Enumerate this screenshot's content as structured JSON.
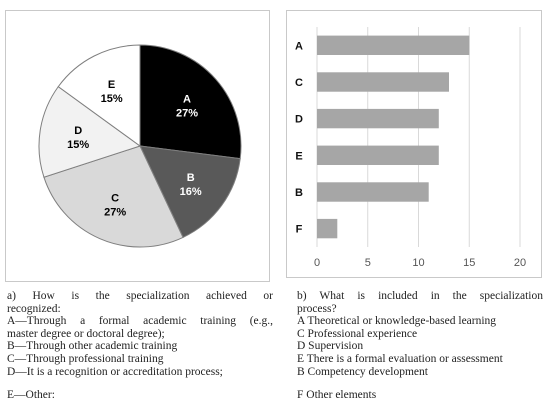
{
  "chart_data": [
    {
      "type": "pie",
      "slices": [
        {
          "label": "A",
          "value": 27,
          "pct_label": "27%",
          "color": "#000000",
          "text_color": "#ffffff"
        },
        {
          "label": "B",
          "value": 16,
          "pct_label": "16%",
          "color": "#595959",
          "text_color": "#ffffff"
        },
        {
          "label": "C",
          "value": 27,
          "pct_label": "27%",
          "color": "#d9d9d9",
          "text_color": "#000000"
        },
        {
          "label": "D",
          "value": 15,
          "pct_label": "15%",
          "color": "#f2f2f2",
          "text_color": "#000000"
        },
        {
          "label": "E",
          "value": 15,
          "pct_label": "15%",
          "color": "#ffffff",
          "text_color": "#000000"
        }
      ]
    },
    {
      "type": "bar",
      "orientation": "horizontal",
      "categories": [
        "A",
        "C",
        "D",
        "E",
        "B",
        "F"
      ],
      "values": [
        15,
        13,
        12,
        12,
        11,
        2
      ],
      "xlim": [
        0,
        20
      ],
      "xticks": [
        "0",
        "5",
        "10",
        "15",
        "20"
      ],
      "grid": true,
      "bar_color": "#a6a6a6"
    }
  ],
  "caption_a": {
    "question_line1": "a) How is the specialization achieved or",
    "question_line2": "recognized:",
    "a_line1": "A—Through a formal academic training (e.g.,",
    "a_line2": "master degree or doctoral degree);",
    "b": "B—Through other academic training",
    "c": "C—Through professional training",
    "d": "D—It is a recognition or accreditation process;",
    "e": "E—Other:"
  },
  "caption_b": {
    "question_line1": "b) What is included in the specialization",
    "question_line2": "process?",
    "a": "A Theoretical or knowledge-based learning",
    "c": "C Professional experience",
    "d": "D Supervision",
    "e": "E There is a formal evaluation or assessment",
    "b": "B Competency development",
    "f": "F Other elements"
  }
}
